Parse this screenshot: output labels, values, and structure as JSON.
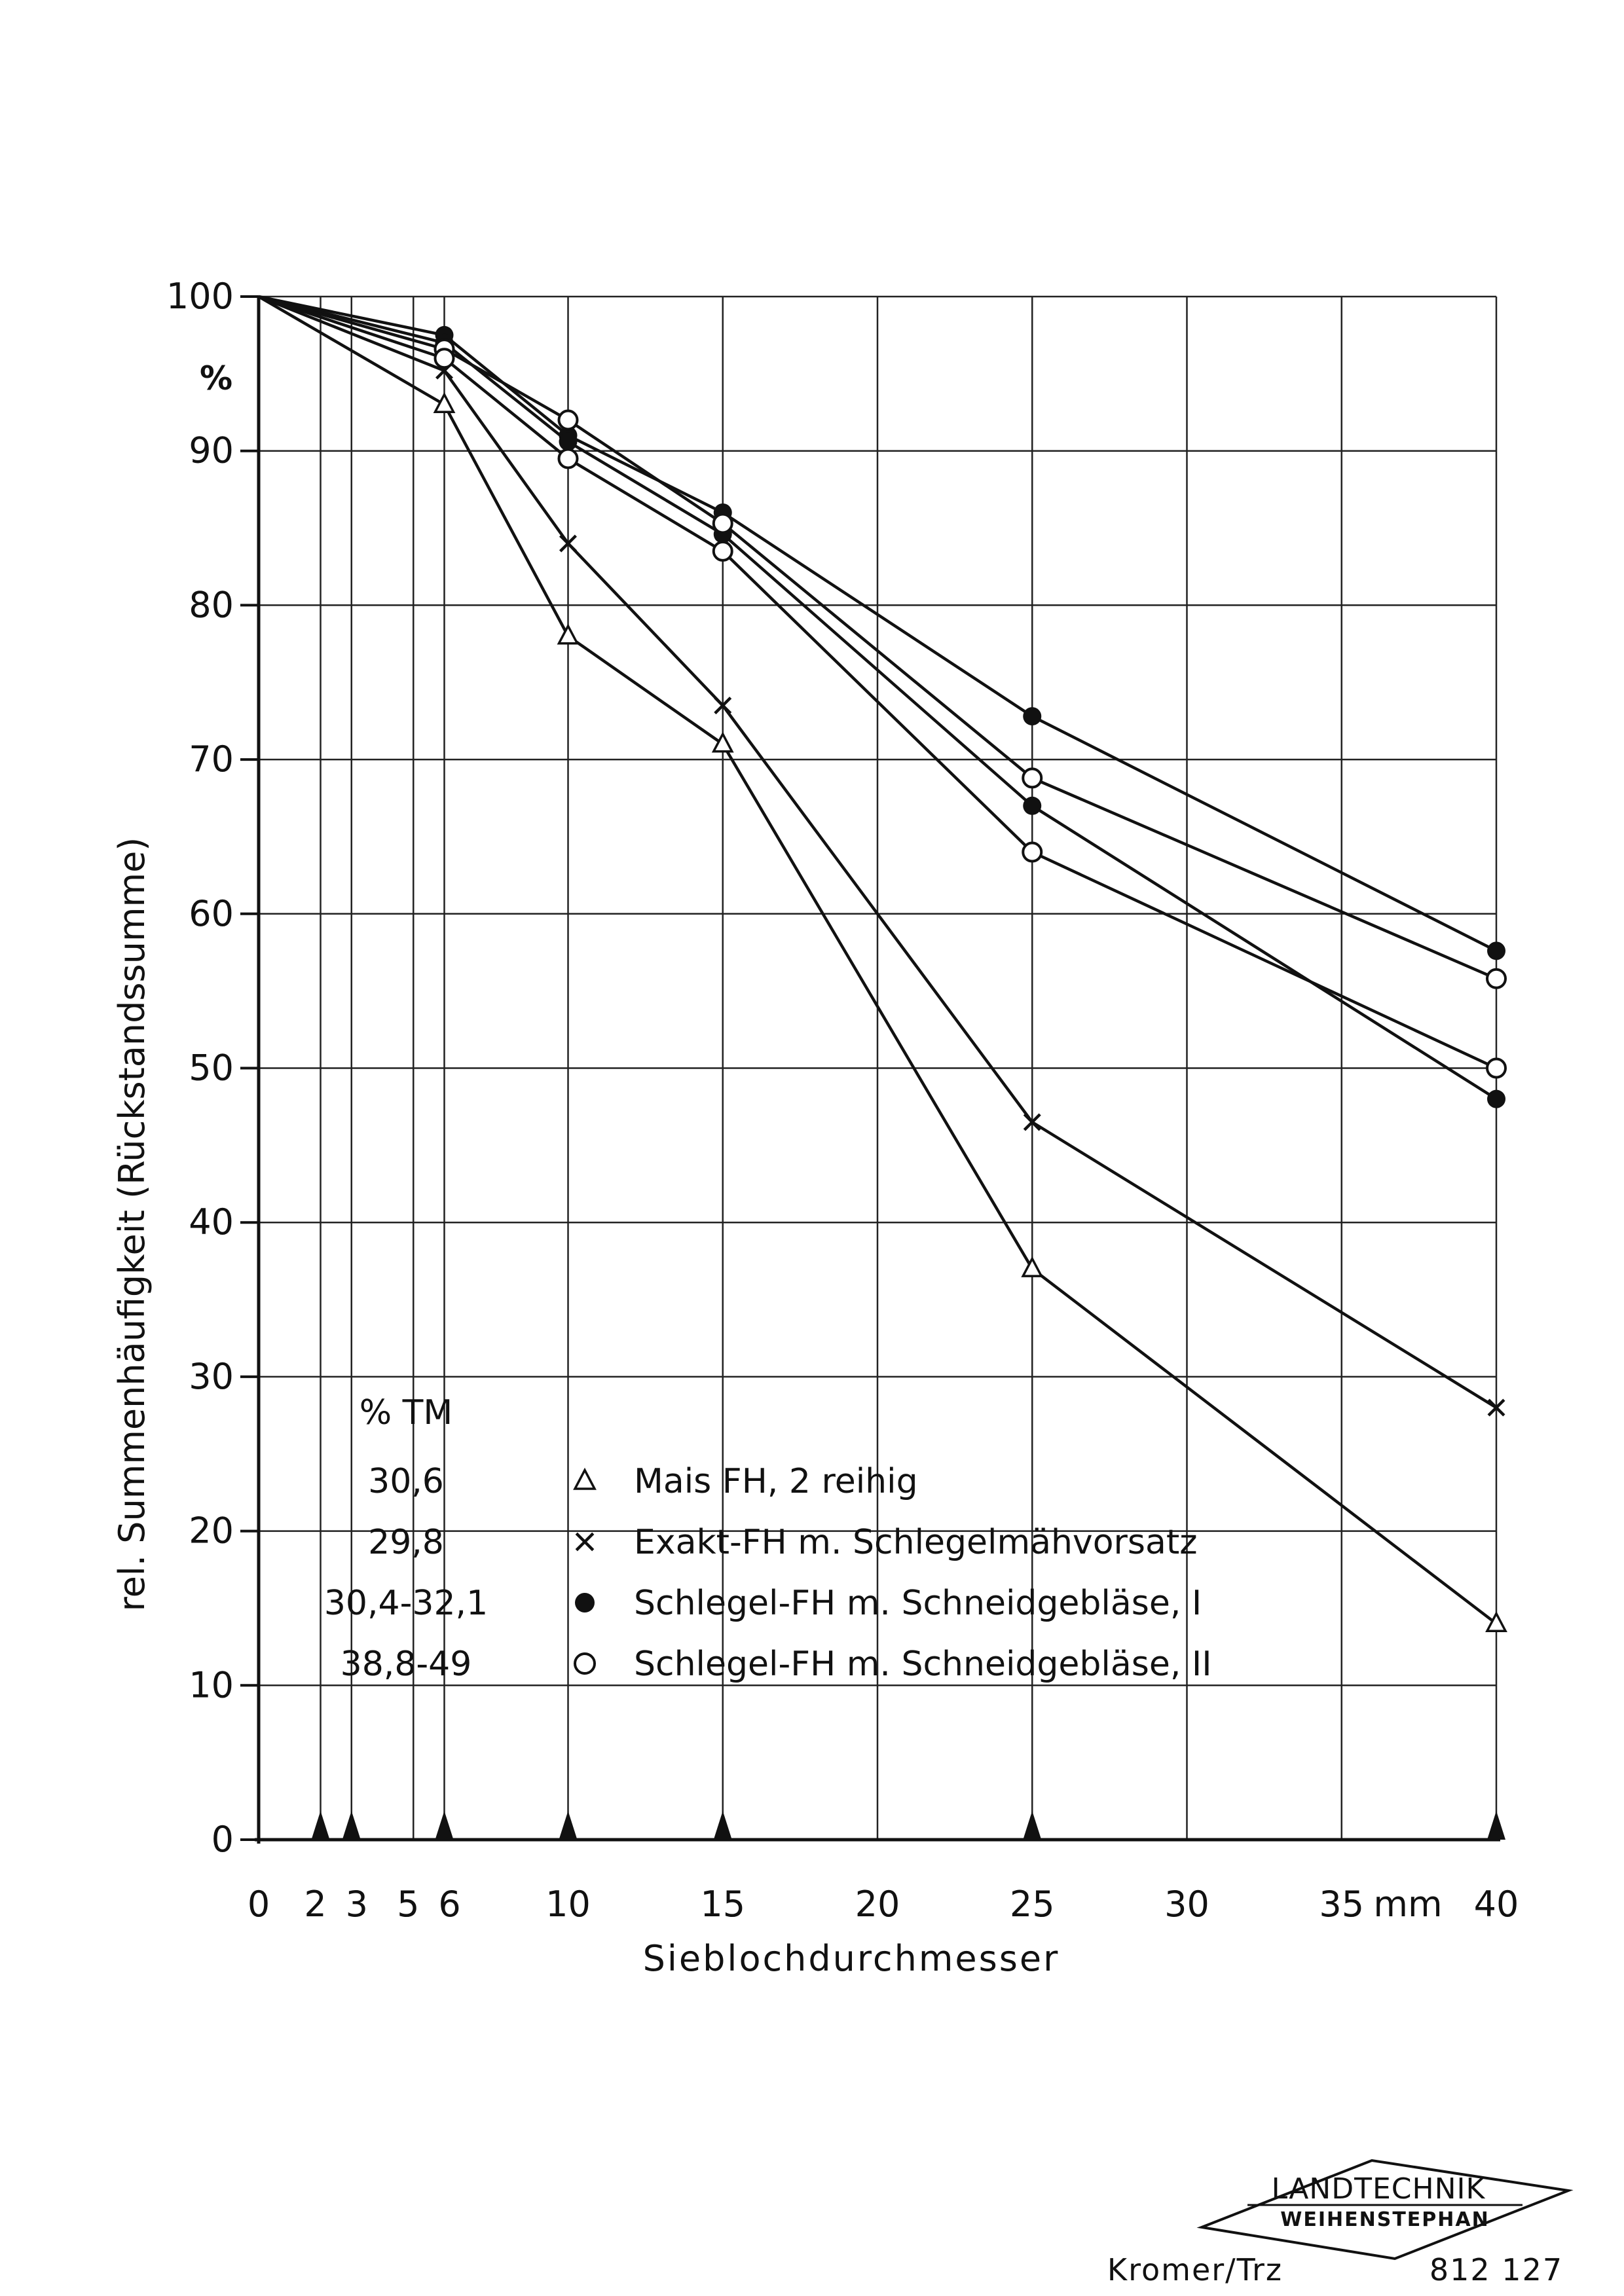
{
  "chart_data": {
    "type": "line",
    "title": "",
    "xlabel": "Sieblochdurchmesser",
    "ylabel": "rel. Summenhäufigkeit (Rückstandssumme)",
    "y_unit": "%",
    "x_unit": "mm",
    "xlim": [
      0,
      40
    ],
    "ylim": [
      0,
      100
    ],
    "grid": true,
    "x_gridlines": [
      2,
      3,
      5,
      6,
      10,
      15,
      20,
      25,
      30,
      35,
      40
    ],
    "x_ticks": [
      {
        "value": 0,
        "label": "0"
      },
      {
        "value": 2,
        "label": "2"
      },
      {
        "value": 3,
        "label": "3"
      },
      {
        "value": 5,
        "label": "5"
      },
      {
        "value": 6,
        "label": "6"
      },
      {
        "value": 10,
        "label": "10"
      },
      {
        "value": 15,
        "label": "15"
      },
      {
        "value": 20,
        "label": "20"
      },
      {
        "value": 25,
        "label": "25"
      },
      {
        "value": 30,
        "label": "30"
      },
      {
        "value": 35,
        "label": "35"
      },
      {
        "value": 40,
        "label": "40"
      }
    ],
    "x_markers": [
      2,
      3,
      6,
      10,
      15,
      25,
      40
    ],
    "y_ticks": [
      {
        "value": 0,
        "label": "0"
      },
      {
        "value": 10,
        "label": "10"
      },
      {
        "value": 20,
        "label": "20"
      },
      {
        "value": 30,
        "label": "30"
      },
      {
        "value": 40,
        "label": "40"
      },
      {
        "value": 50,
        "label": "50"
      },
      {
        "value": 60,
        "label": "60"
      },
      {
        "value": 70,
        "label": "70"
      },
      {
        "value": 80,
        "label": "80"
      },
      {
        "value": 90,
        "label": "90"
      },
      {
        "value": 100,
        "label": "100"
      }
    ],
    "legend_position": "lower-left",
    "legend_header": "% TM",
    "series": [
      {
        "name": "Mais FH, 2 reihig",
        "tm": "30,6",
        "marker": "triangle-open",
        "x": [
          0,
          6,
          10,
          15,
          25,
          40
        ],
        "y": [
          100,
          93,
          78,
          71,
          37,
          14
        ]
      },
      {
        "name": "Exakt-FH m. Schlegelmähvorsatz",
        "tm": "29,8",
        "marker": "cross",
        "x": [
          0,
          6,
          10,
          15,
          25,
          40
        ],
        "y": [
          100,
          95.2,
          84,
          73.5,
          46.5,
          28
        ]
      },
      {
        "name": "Schlegel-FH m. Schneidgebläse, I",
        "tm": "30,4-32,1",
        "marker": "circle-filled",
        "curves": [
          {
            "x": [
              0,
              6,
              10,
              15,
              25,
              40
            ],
            "y": [
              100,
              97.5,
              91,
              86,
              72.8,
              57.6
            ]
          },
          {
            "x": [
              0,
              6,
              10,
              15,
              25,
              40
            ],
            "y": [
              100,
              97,
              90.6,
              84.6,
              67,
              48
            ]
          }
        ]
      },
      {
        "name": "Schlegel-FH m. Schneidgebläse, II",
        "tm": "38,8-49",
        "marker": "circle-open",
        "curves": [
          {
            "x": [
              0,
              6,
              10,
              15,
              25,
              40
            ],
            "y": [
              100,
              96.6,
              92,
              85.3,
              68.8,
              55.8
            ]
          },
          {
            "x": [
              0,
              6,
              10,
              15,
              25,
              40
            ],
            "y": [
              100,
              96,
              89.5,
              83.5,
              64,
              50
            ]
          }
        ]
      }
    ]
  },
  "stamp": {
    "line1": "LANDTECHNIK",
    "line2": "WEIHENSTEPHAN",
    "author": "Kromer/Trz",
    "number": "812 127"
  }
}
